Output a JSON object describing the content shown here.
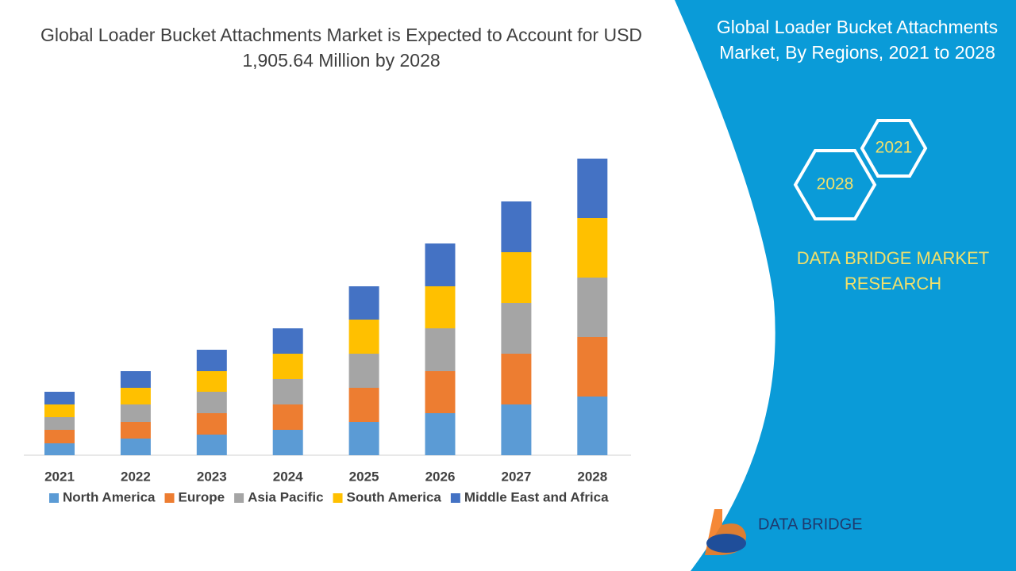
{
  "chart_data": {
    "type": "bar",
    "stacked": true,
    "title": "Global Loader Bucket Attachments Market is Expected to Account for USD 1,905.64 Million by 2028",
    "categories": [
      "2021",
      "2022",
      "2023",
      "2024",
      "2025",
      "2026",
      "2027",
      "2028"
    ],
    "series": [
      {
        "name": "North America",
        "color": "#5b9bd5",
        "values": [
          15,
          21,
          26,
          32,
          42,
          53,
          64,
          74
        ]
      },
      {
        "name": "Europe",
        "color": "#ed7d31",
        "values": [
          17,
          21,
          27,
          32,
          43,
          53,
          64,
          75
        ]
      },
      {
        "name": "Asia Pacific",
        "color": "#a5a5a5",
        "values": [
          16,
          22,
          27,
          32,
          43,
          54,
          64,
          75
        ]
      },
      {
        "name": "South America",
        "color": "#ffc000",
        "values": [
          16,
          21,
          26,
          32,
          43,
          53,
          64,
          75
        ]
      },
      {
        "name": "Middle East and Africa",
        "color": "#4472c4",
        "values": [
          16,
          21,
          27,
          32,
          42,
          54,
          64,
          75
        ]
      }
    ]
  },
  "panel": {
    "title": "Global Loader Bucket Attachments Market, By Regions, 2021 to 2028",
    "hexagons": [
      "2021",
      "2028"
    ],
    "brand": "DATA BRIDGE MARKET RESEARCH",
    "logo": "DATA BRIDGE"
  }
}
